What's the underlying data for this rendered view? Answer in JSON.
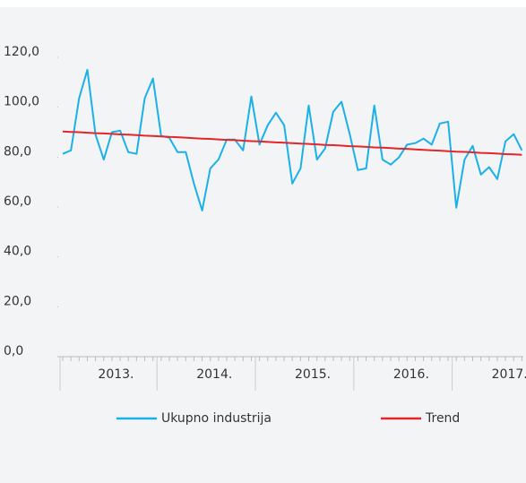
{
  "chart_data": {
    "type": "line",
    "x_labels": [
      "2013.",
      "2014.",
      "2015.",
      "2016.",
      "2017."
    ],
    "series": [
      {
        "name": "Ukupno industrija",
        "color": "#1ab0ea",
        "values": [
          81.3,
          82.7,
          103.6,
          115,
          89,
          79,
          90,
          90.6,
          82,
          81.3,
          103.6,
          111.5,
          88.5,
          87.8,
          82,
          82,
          69.4,
          58.6,
          75.5,
          79,
          87,
          87,
          82.7,
          104.3,
          85,
          92.8,
          97.8,
          92.8,
          69.4,
          75.5,
          100.7,
          79,
          83.5,
          98.2,
          102.2,
          89.2,
          74.8,
          75.5,
          100.7,
          79,
          77,
          79.9,
          85,
          85.6,
          87.4,
          85,
          93.5,
          94.2,
          59.7,
          79,
          84.5,
          73,
          76,
          71.2,
          86.3,
          89.2,
          82.7
        ]
      },
      {
        "name": "Trend",
        "color": "#e3262b",
        "values": [
          90.3,
          90.1,
          90.0,
          89.8,
          89.6,
          89.5,
          89.3,
          89.1,
          89.0,
          88.8,
          88.6,
          88.5,
          88.3,
          88.1,
          88.0,
          87.8,
          87.6,
          87.4,
          87.3,
          87.1,
          86.9,
          86.8,
          86.6,
          86.4,
          86.3,
          86.1,
          85.9,
          85.8,
          85.6,
          85.4,
          85.3,
          85.1,
          84.9,
          84.8,
          84.6,
          84.4,
          84.3,
          84.1,
          83.9,
          83.8,
          83.6,
          83.4,
          83.3,
          83.1,
          82.9,
          82.7,
          82.6,
          82.4,
          82.2,
          82.1,
          81.9,
          81.7,
          81.6,
          81.4,
          81.2,
          81.1,
          80.9
        ]
      }
    ],
    "ylim": [
      0,
      120
    ],
    "yticks": [
      {
        "value": 0,
        "label": "0,0"
      },
      {
        "value": 20,
        "label": "20,0"
      },
      {
        "value": 40,
        "label": "40,0"
      },
      {
        "value": 60,
        "label": "60,0"
      },
      {
        "value": 80,
        "label": "80,0"
      },
      {
        "value": 100,
        "label": "100,0"
      },
      {
        "value": 120,
        "label": "120,0"
      }
    ],
    "legend": "bottom"
  }
}
